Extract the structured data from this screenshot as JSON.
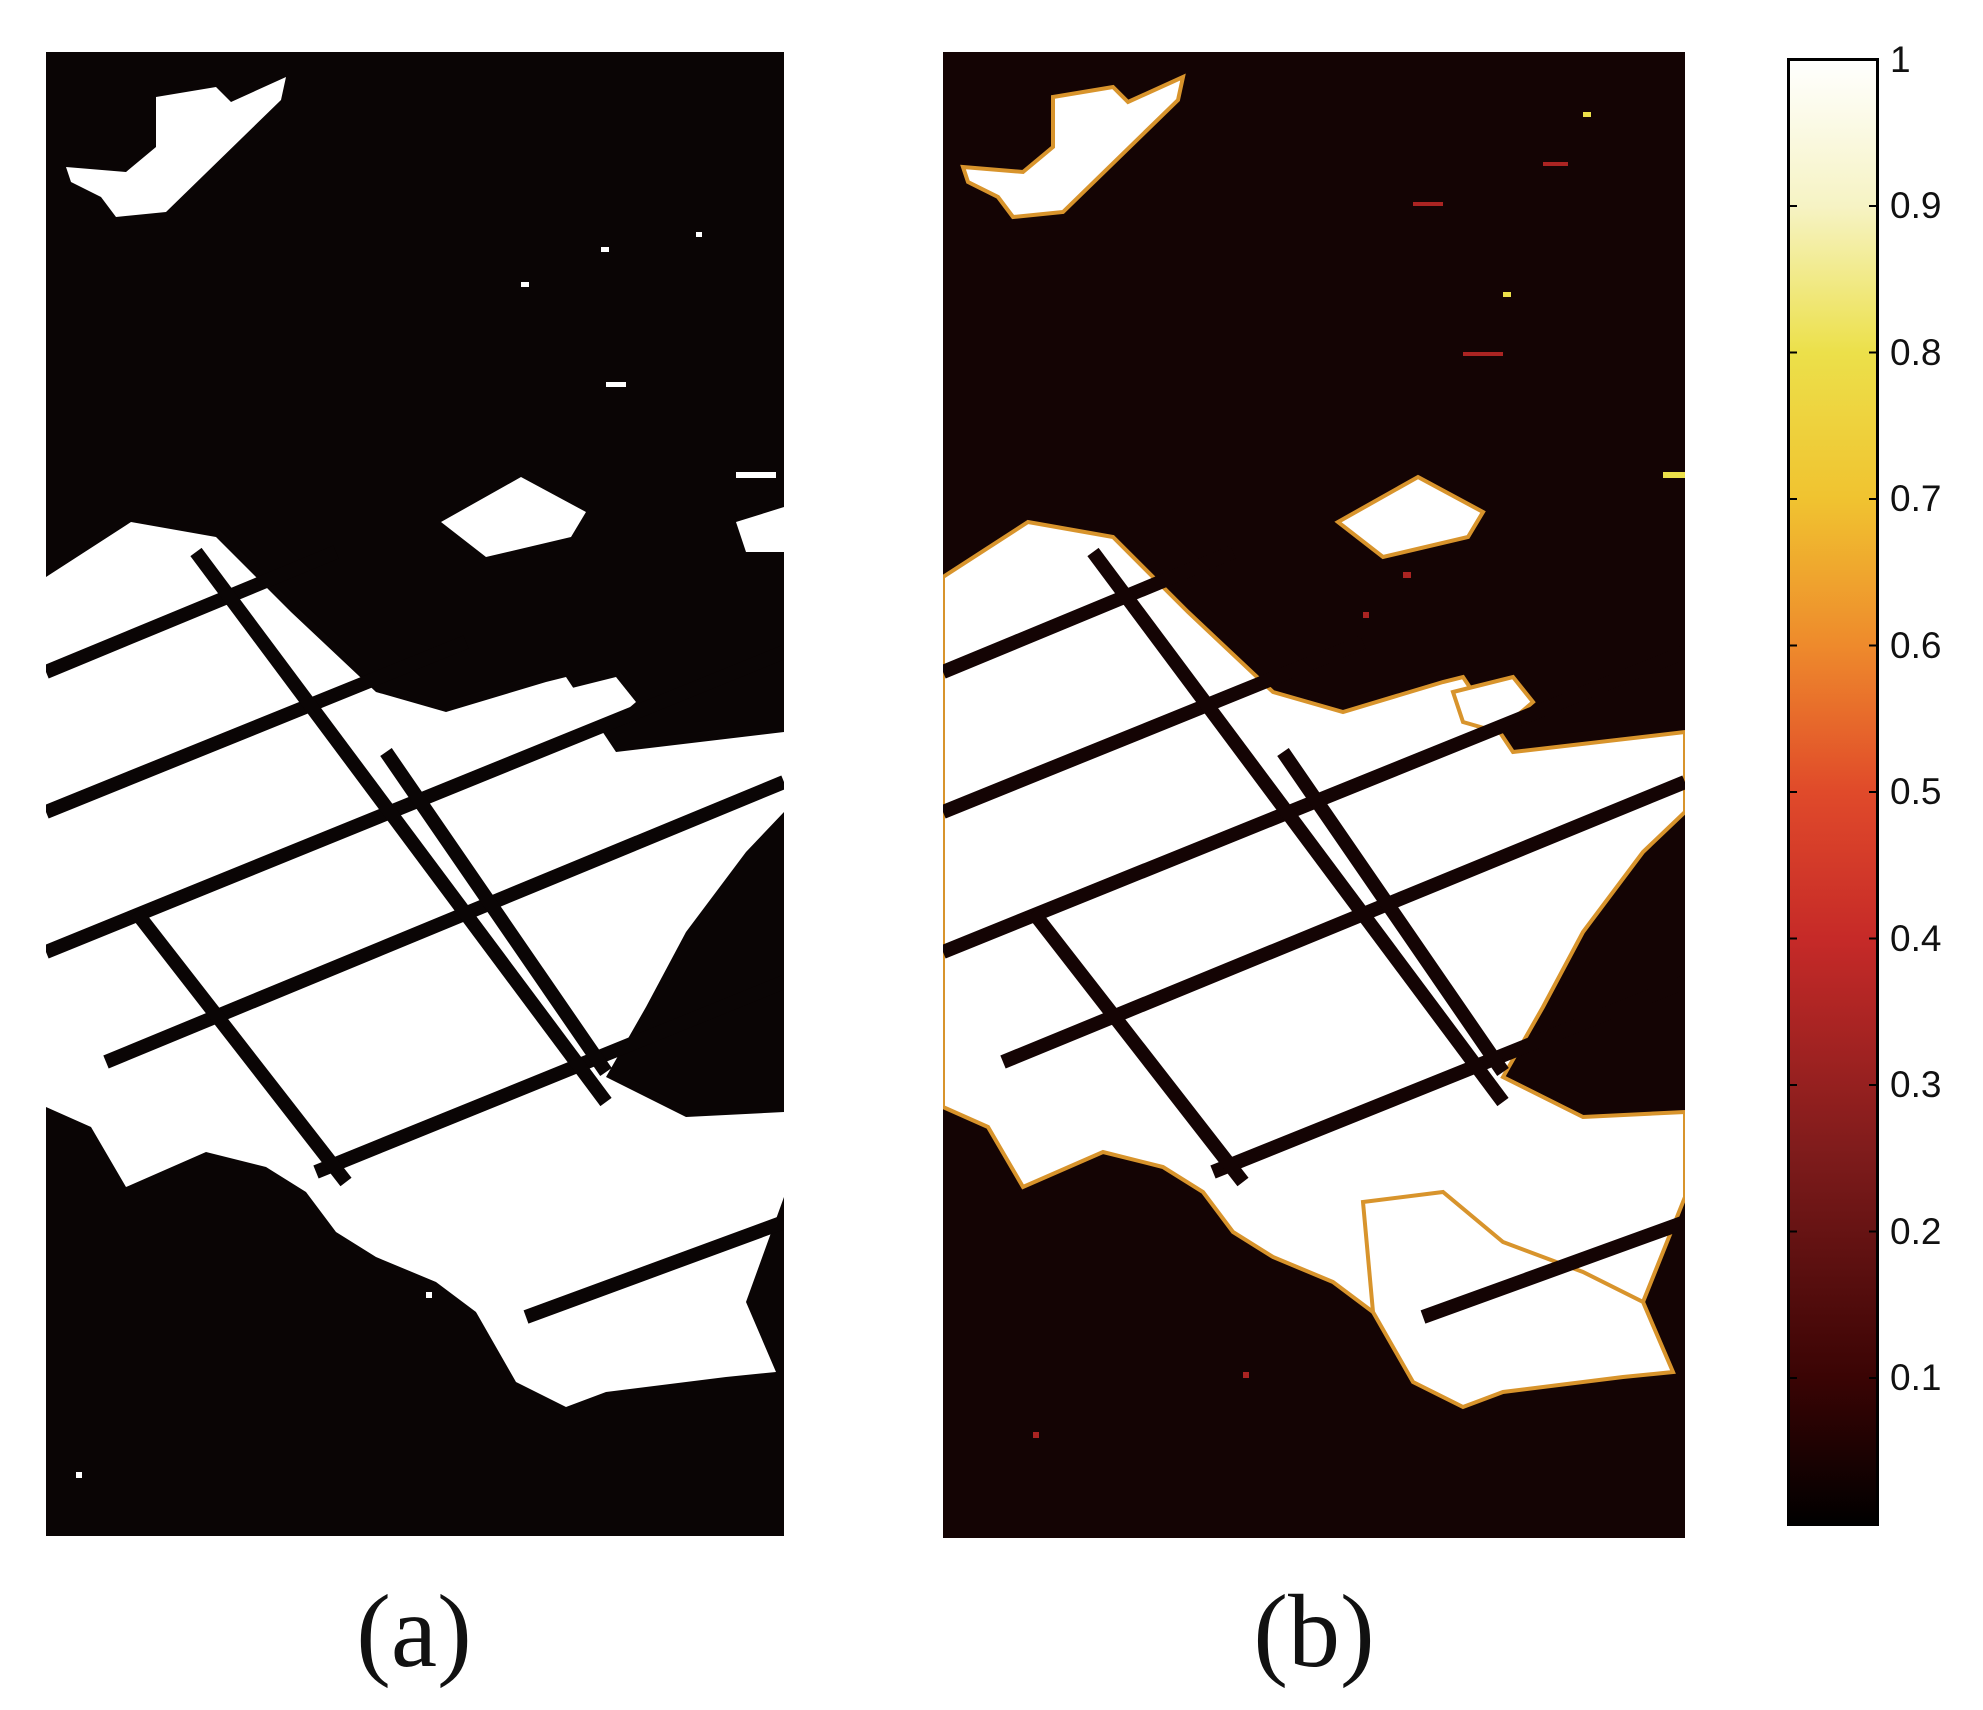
{
  "captions": {
    "a": "(a)",
    "b": "(b)"
  },
  "colorbar": {
    "min": 0,
    "max": 1,
    "ticks": [
      "0.1",
      "0.2",
      "0.3",
      "0.4",
      "0.5",
      "0.6",
      "0.7",
      "0.8",
      "0.9",
      "1"
    ],
    "tick_values": [
      0.1,
      0.2,
      0.3,
      0.4,
      0.5,
      0.6,
      0.7,
      0.8,
      0.9,
      1
    ],
    "colormap": "hot",
    "colors": [
      "#000000",
      "#3a0404",
      "#7d1b1b",
      "#c62a28",
      "#e04a2a",
      "#ee8a2c",
      "#f0c330",
      "#ece04a",
      "#f6f3c4",
      "#ffffff"
    ]
  },
  "panels": {
    "a": {
      "background": "#0a0505",
      "foreground": "#ffffff"
    },
    "b": {
      "background": "#140404",
      "foreground": "#ffffff",
      "edge_color": "#d8942c"
    }
  }
}
